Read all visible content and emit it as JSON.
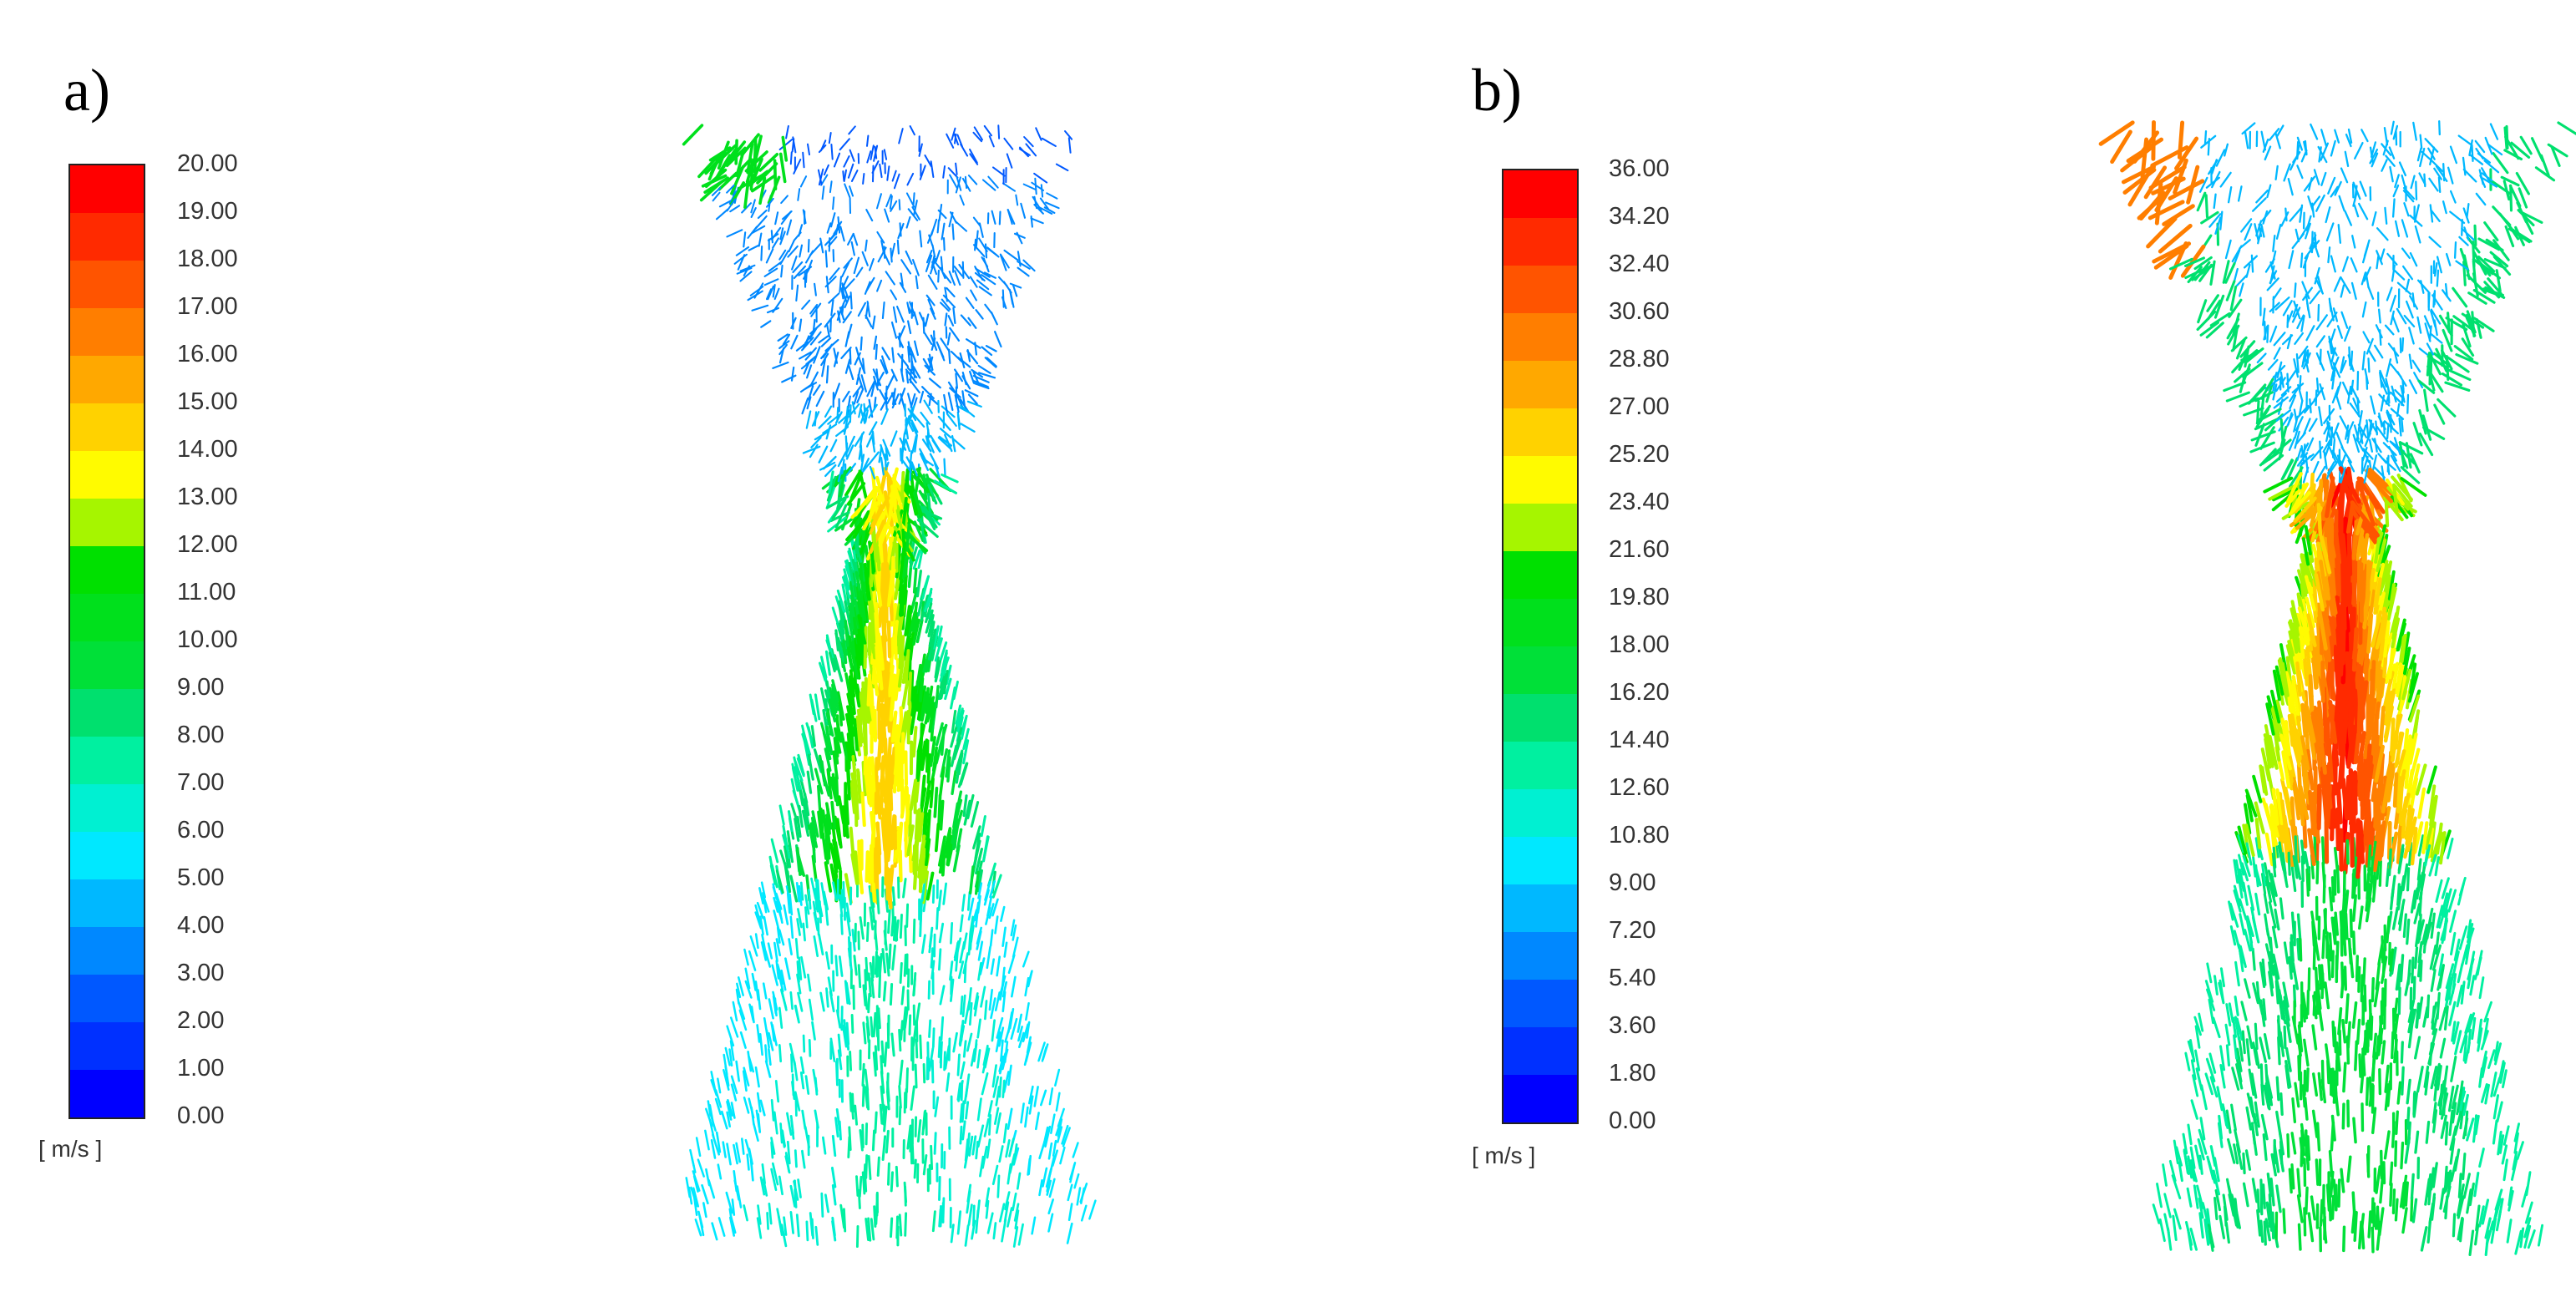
{
  "panels": [
    {
      "label": "a)",
      "unit": "[ m/s ]",
      "ticks": [
        "20.00",
        "19.00",
        "18.00",
        "17.00",
        "16.00",
        "15.00",
        "14.00",
        "13.00",
        "12.00",
        "11.00",
        "10.00",
        "9.00",
        "8.00",
        "7.00",
        "6.00",
        "5.00",
        "4.00",
        "3.00",
        "2.00",
        "1.00",
        "0.00"
      ]
    },
    {
      "label": "b)",
      "unit": "[ m/s ]",
      "ticks": [
        "36.00",
        "34.20",
        "32.40",
        "30.60",
        "28.80",
        "27.00",
        "25.20",
        "23.40",
        "21.60",
        "19.80",
        "18.00",
        "16.20",
        "14.40",
        "12.60",
        "10.80",
        "9.00",
        "7.20",
        "5.40",
        "3.60",
        "1.80",
        "0.00"
      ]
    }
  ],
  "colors": {
    "scale": [
      "#ff0000",
      "#ff2a00",
      "#ff5400",
      "#ff7e00",
      "#ffa800",
      "#ffd200",
      "#fffb00",
      "#a6f500",
      "#00e000",
      "#00e01c",
      "#00e038",
      "#00e06e",
      "#00f0a0",
      "#00f0d2",
      "#00e8ff",
      "#00b8ff",
      "#0088ff",
      "#0058ff",
      "#0030ff",
      "#0000ff"
    ]
  }
}
